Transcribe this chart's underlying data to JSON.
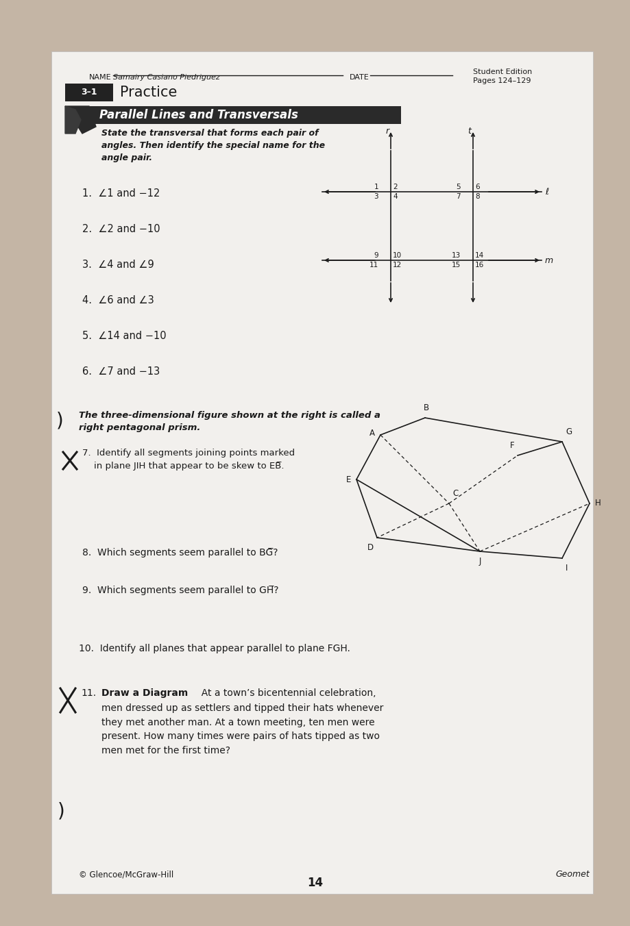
{
  "bg_outer": "#c4b5a5",
  "bg_paper": "#f2f0ed",
  "text_color": "#1a1a1a",
  "name_text": "Samairy Casiano Piedriguez",
  "section": "3-1",
  "practice": "Practice",
  "heading": "Parallel Lines and Transversals",
  "subheading": "State the transversal that forms each pair of\nangles. Then identify the special name for the\nangle pair.",
  "student_edition": "Student Edition\nPages 124–9",
  "questions_part1": [
    "1.  ∠1 and −12",
    "2.  ∠2 and −10",
    "3.  ∠4 and ∠9",
    "4.  ∠6 and ∠3",
    "5.  ∠14 and −10",
    "6.  ∠7 and −13"
  ],
  "footer_left": "© Glencoe/McGraw-Hill",
  "footer_center": "14",
  "footer_right": "Geomet"
}
